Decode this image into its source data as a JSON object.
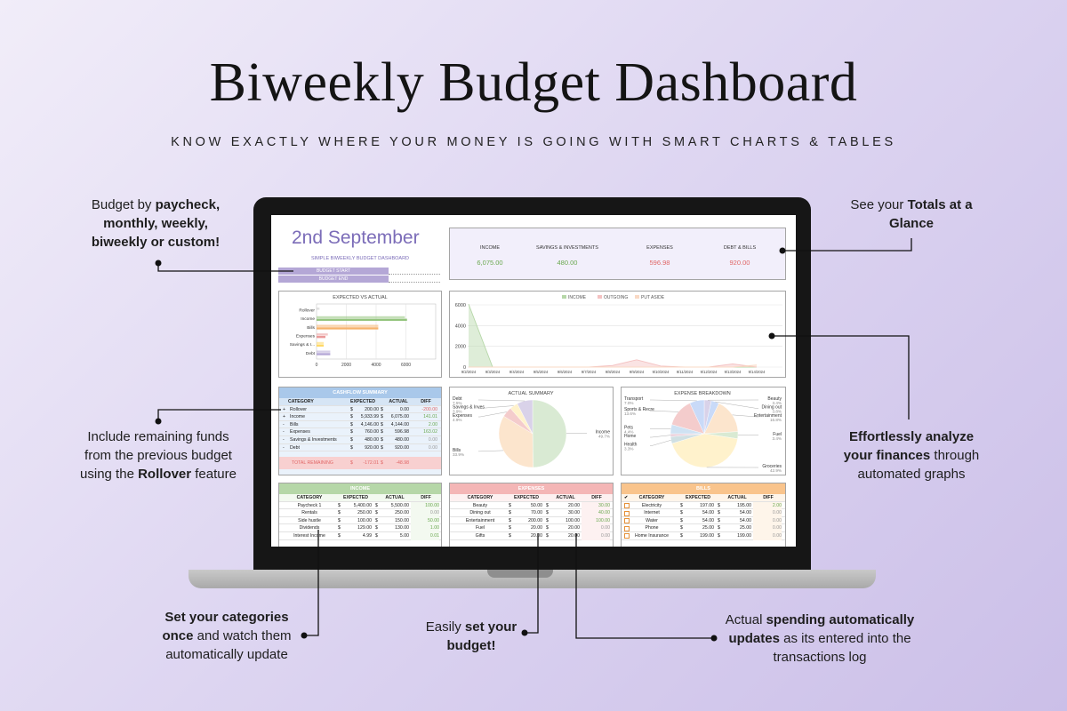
{
  "header": {
    "title": "Biweekly Budget Dashboard",
    "subtitle": "KNOW EXACTLY WHERE YOUR MONEY IS GOING WITH SMART CHARTS & TABLES"
  },
  "callouts": [
    {
      "lines": [
        [
          {
            "text": "Budget by "
          },
          {
            "text": "paycheck,",
            "bold": true
          }
        ],
        [
          {
            "text": "monthly, weekly,",
            "bold": true
          }
        ],
        [
          {
            "text": "biweekly or custom!",
            "bold": true
          }
        ]
      ]
    },
    {
      "lines": [
        [
          {
            "text": "See your "
          },
          {
            "text": "Totals at a",
            "bold": true
          }
        ],
        [
          {
            "text": "Glance",
            "bold": true
          }
        ]
      ]
    },
    {
      "lines": [
        [
          {
            "text": "Include remaining funds"
          }
        ],
        [
          {
            "text": "from the previous budget"
          }
        ],
        [
          {
            "text": "using the "
          },
          {
            "text": "Rollover",
            "bold": true
          },
          {
            "text": " feature"
          }
        ]
      ]
    },
    {
      "lines": [
        [
          {
            "text": "Effortlessly analyze",
            "bold": true
          }
        ],
        [
          {
            "text": "your finances",
            "bold": true
          },
          {
            "text": " through"
          }
        ],
        [
          {
            "text": "automated graphs"
          }
        ]
      ]
    },
    {
      "lines": [
        [
          {
            "text": "Set your categories",
            "bold": true
          }
        ],
        [
          {
            "text": "once",
            "bold": true
          },
          {
            "text": " and watch them"
          }
        ],
        [
          {
            "text": "automatically update"
          }
        ]
      ]
    },
    {
      "lines": [
        [
          {
            "text": "Easily "
          },
          {
            "text": "set your",
            "bold": true
          }
        ],
        [
          {
            "text": "budget!",
            "bold": true
          }
        ]
      ]
    },
    {
      "lines": [
        [
          {
            "text": "Actual "
          },
          {
            "text": "spending automatically",
            "bold": true
          }
        ],
        [
          {
            "text": "updates",
            "bold": true
          },
          {
            "text": " as its entered into the"
          }
        ],
        [
          {
            "text": "transactions log"
          }
        ]
      ]
    }
  ],
  "dashboard": {
    "date": "2nd September",
    "subtitle": "SIMPLE BIWEEKLY BUDGET DASHBOARD",
    "budget_start": "BUDGET START",
    "budget_end": "BUDGET END",
    "currency": "$",
    "totals": [
      {
        "label": "INCOME",
        "value": "6,075.00",
        "color": "#6aa84f"
      },
      {
        "label": "SAVINGS & INVESTMENTS",
        "value": "480.00",
        "color": "#6aa84f"
      },
      {
        "label": "EXPENSES",
        "value": "596.98",
        "color": "#e06666"
      },
      {
        "label": "DEBT & BILLS",
        "value": "920.00",
        "color": "#e06666"
      }
    ],
    "expected_vs_actual": {
      "type": "bar",
      "title": "EXPECTED VS ACTUAL",
      "categories": [
        "Rollover",
        "Income",
        "Bills",
        "Expenses",
        "Savings & I...",
        "Debt"
      ],
      "colors": [
        "#c9c9c9",
        "#93c47d",
        "#f6b26b",
        "#ea9999",
        "#ffd966",
        "#b4a7d6"
      ],
      "series": [
        {
          "values": [
            200,
            5933.99,
            4146,
            760,
            480,
            920
          ]
        },
        {
          "values": [
            0,
            6075,
            4144,
            596.98,
            480,
            920
          ]
        }
      ],
      "xlim": [
        0,
        8000
      ],
      "xticks": [
        0,
        2000,
        4000,
        6000
      ]
    },
    "cashflow_chart": {
      "type": "line",
      "categories": [
        "9/2/2024",
        "9/3/2024",
        "9/4/2024",
        "9/5/2024",
        "9/6/2024",
        "9/7/2024",
        "9/8/2024",
        "9/9/2024",
        "9/10/2024",
        "9/11/2024",
        "9/12/2024",
        "9/13/2024",
        "9/14/2024"
      ],
      "series": [
        {
          "name": "INCOME",
          "color": "#b6d7a8",
          "values": [
            6075,
            0,
            0,
            0,
            0,
            0,
            0,
            0,
            0,
            0,
            0,
            0,
            0
          ]
        },
        {
          "name": "OUTGOING",
          "color": "#f4c2c2",
          "values": [
            0,
            0,
            0,
            0,
            0,
            0,
            150,
            700,
            100,
            0,
            0,
            300,
            0
          ]
        },
        {
          "name": "PUT ASIDE",
          "color": "#f9d9c4",
          "values": [
            0,
            0,
            0,
            0,
            0,
            0,
            0,
            0,
            0,
            0,
            0,
            0,
            200
          ]
        }
      ],
      "ylim": [
        0,
        6000
      ],
      "yticks": [
        0,
        2000,
        4000,
        6000
      ],
      "grid": true
    },
    "actual_summary": {
      "type": "pie",
      "title": "ACTUAL SUMMARY",
      "categories": [
        "Income",
        "Bills",
        "Expenses",
        "Savings & Inves",
        "Debt"
      ],
      "values": [
        49.7,
        33.9,
        4.9,
        3.9,
        7.5
      ],
      "value_labels": [
        "49.7%",
        "33.9%",
        "4.9%",
        "3.9%",
        "7.5%"
      ],
      "colors": [
        "#d9ead3",
        "#fce5cd",
        "#f4cccc",
        "#fff2cc",
        "#d9d2e9"
      ]
    },
    "expense_breakdown": {
      "type": "pie",
      "title": "EXPENSE BREAKDOWN",
      "categories": [
        "Beauty",
        "Dining out",
        "Entertainment",
        "Fuel",
        "Groceries",
        "Health",
        "Home",
        "Pets",
        "Sports & Recre",
        "Transport"
      ],
      "values": [
        3.4,
        3.8,
        16.8,
        3.4,
        42.9,
        3.3,
        1.4,
        4.4,
        13.6,
        7.0
      ],
      "value_labels": [
        "3.4%",
        "3.8%",
        "16.8%",
        "3.4%",
        "42.9%",
        "3.3%",
        null,
        "4.4%",
        "13.6%",
        "7.0%"
      ],
      "colors": [
        "#d9d2e9",
        "#c9daf8",
        "#fce5cd",
        "#d9ead3",
        "#fff2cc",
        "#d0e0e3",
        "#ead1dc",
        "#cfe2f3",
        "#f4cccc",
        "#c9daf8"
      ]
    },
    "cashflow_summary": {
      "title": "CASHFLOW SUMMARY",
      "columns": [
        "CATEGORY",
        "EXPECTED",
        "ACTUAL",
        "DIFF"
      ],
      "rows": [
        {
          "sign": "+",
          "cells": [
            "Rollover",
            "200.00",
            "0.00",
            "-200.00"
          ]
        },
        {
          "sign": "+",
          "cells": [
            "Income",
            "5,933.99",
            "6,075.00",
            "141.01"
          ]
        },
        {
          "sign": "-",
          "cells": [
            "Bills",
            "4,146.00",
            "4,144.00",
            "2.00"
          ]
        },
        {
          "sign": "-",
          "cells": [
            "Expenses",
            "760.00",
            "596.98",
            "163.02"
          ]
        },
        {
          "sign": "-",
          "cells": [
            "Savings & Investments",
            "480.00",
            "480.00",
            "0.00"
          ]
        },
        {
          "sign": "-",
          "cells": [
            "Debt",
            "920.00",
            "920.00",
            "0.00"
          ]
        }
      ],
      "total": {
        "label": "TOTAL REMAINING",
        "values": [
          "-172.01",
          "-48.98"
        ]
      }
    },
    "income": {
      "title": "INCOME",
      "header_color": "#b6d7a8",
      "row_color": "#f3f9f0",
      "columns": [
        "CATEGORY",
        "EXPECTED",
        "ACTUAL",
        "DIFF"
      ],
      "rows": [
        [
          "Paycheck 1",
          "5,400.00",
          "5,500.00",
          "100.00"
        ],
        [
          "Rentals",
          "250.00",
          "250.00",
          "0.00"
        ],
        [
          "Side hustle",
          "100.00",
          "150.00",
          "50.00"
        ],
        [
          "Dividends",
          "129.00",
          "130.00",
          "1.00"
        ],
        [
          "Interest Income",
          "4.99",
          "5.00",
          "0.01"
        ]
      ]
    },
    "expenses": {
      "title": "EXPENSES",
      "header_color": "#f4b6b6",
      "row_color": "#fdf1f1",
      "columns": [
        "CATEGORY",
        "EXPECTED",
        "ACTUAL",
        "DIFF"
      ],
      "rows": [
        [
          "Beauty",
          "50.00",
          "20.00",
          "30.00"
        ],
        [
          "Dining out",
          "70.00",
          "30.00",
          "40.00"
        ],
        [
          "Entertainment",
          "200.00",
          "100.00",
          "100.00"
        ],
        [
          "Fuel",
          "20.00",
          "20.00",
          "0.00"
        ],
        [
          "Gifts",
          "20.00",
          "20.00",
          "0.00"
        ]
      ]
    },
    "bills": {
      "title": "BILLS",
      "header_color": "#f9c48c",
      "row_color": "#fef5ea",
      "check": true,
      "columns": [
        "✔",
        "CATEGORY",
        "EXPECTED",
        "ACTUAL",
        "DIFF"
      ],
      "rows": [
        [
          "Electricity",
          "197.00",
          "195.00",
          "2.00"
        ],
        [
          "Internet",
          "54.00",
          "54.00",
          "0.00"
        ],
        [
          "Water",
          "54.00",
          "54.00",
          "0.00"
        ],
        [
          "Phone",
          "25.00",
          "25.00",
          "0.00"
        ],
        [
          "Home Insurance",
          "199.00",
          "199.00",
          "0.00"
        ]
      ]
    }
  }
}
